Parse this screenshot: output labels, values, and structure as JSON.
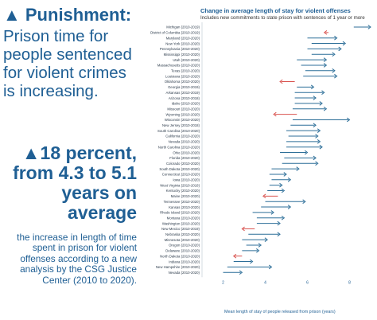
{
  "left_panel": {
    "headline": "▲ Punishment:",
    "intro": "Prison time for people sentenced for violent crimes is increasing.",
    "stat": "▲18 percent, from 4.3 to 5.1 years on average",
    "caption": "the increase in length of time spent in prison for violent offenses according to a new analysis by the CSG Justice Center (2010 to 2020)."
  },
  "colors": {
    "increase": "#2c6e98",
    "decrease": "#d9534f",
    "text": "#1f5f94"
  },
  "chart_data": {
    "type": "arrow",
    "title": "Change in average length of stay for violent offenses",
    "subtitle": "Includes new commitments to state prison with sentences of 1 year or more",
    "xlabel": "Mean length of stay of people released from prison (years)",
    "xlim": [
      1,
      9
    ],
    "xticks": [
      2,
      4,
      6,
      8
    ],
    "states": [
      {
        "label": "Michigan (2010-2019)",
        "start": 8.2,
        "end": 9.0
      },
      {
        "label": "District of Columbia (2010-2019)",
        "start": 7.0,
        "end": 6.8
      },
      {
        "label": "Maryland (2010-2020)",
        "start": 6.0,
        "end": 7.4
      },
      {
        "label": "New York (2010-2020)",
        "start": 6.2,
        "end": 7.8
      },
      {
        "label": "Pennsylvania (2010-2020)",
        "start": 6.0,
        "end": 7.6
      },
      {
        "label": "Mississippi (2010-2020)",
        "start": 6.2,
        "end": 7.3
      },
      {
        "label": "Utah (2010-2020)",
        "start": 5.5,
        "end": 6.9
      },
      {
        "label": "Massachusetts (2010-2020)",
        "start": 5.7,
        "end": 6.9
      },
      {
        "label": "Texas (2010-2020)",
        "start": 5.9,
        "end": 7.3
      },
      {
        "label": "Louisiana (2010-2020)",
        "start": 5.8,
        "end": 7.4
      },
      {
        "label": "Oklahoma (2010-2020)",
        "start": 5.4,
        "end": 4.7
      },
      {
        "label": "Georgia (2010-2019)",
        "start": 5.5,
        "end": 6.3
      },
      {
        "label": "Arkansas (2010-2019)",
        "start": 5.4,
        "end": 6.8
      },
      {
        "label": "Arizona (2010-2018)",
        "start": 5.4,
        "end": 6.4
      },
      {
        "label": "Idaho (2010-2020)",
        "start": 5.4,
        "end": 6.7
      },
      {
        "label": "Missouri (2010-2020)",
        "start": 5.3,
        "end": 6.9
      },
      {
        "label": "Wyoming (2010-2020)",
        "start": 5.5,
        "end": 4.4
      },
      {
        "label": "Wisconsin (2010-2020)",
        "start": 5.3,
        "end": 8.0
      },
      {
        "label": "New Jersey (2010-2018)",
        "start": 5.2,
        "end": 6.4
      },
      {
        "label": "South Carolina (2010-2020)",
        "start": 5.0,
        "end": 6.6
      },
      {
        "label": "California (2010-2020)",
        "start": 5.1,
        "end": 6.5
      },
      {
        "label": "Nevada (2010-2020)",
        "start": 5.0,
        "end": 6.6
      },
      {
        "label": "North Carolina (2010-2020)",
        "start": 5.0,
        "end": 6.7
      },
      {
        "label": "Ohio (2010-2020)",
        "start": 4.7,
        "end": 6.0
      },
      {
        "label": "Florida (2010-2020)",
        "start": 4.9,
        "end": 6.4
      },
      {
        "label": "Colorado (2010-2020)",
        "start": 4.8,
        "end": 6.5
      },
      {
        "label": "South Dakota (2010-2020)",
        "start": 4.3,
        "end": 5.6
      },
      {
        "label": "Connecticut (2010-2020)",
        "start": 4.2,
        "end": 5.0
      },
      {
        "label": "Iowa (2010-2020)",
        "start": 4.3,
        "end": 5.2
      },
      {
        "label": "West Virginia (2010-2018)",
        "start": 4.2,
        "end": 4.8
      },
      {
        "label": "Kentucky (2010-2020)",
        "start": 4.1,
        "end": 4.9
      },
      {
        "label": "Maine (2010-2020)",
        "start": 4.6,
        "end": 3.9
      },
      {
        "label": "Tennessee (2010-2020)",
        "start": 4.0,
        "end": 5.9
      },
      {
        "label": "Kansas (2010-2020)",
        "start": 3.8,
        "end": 5.2
      },
      {
        "label": "Rhode Island (2010-2020)",
        "start": 3.4,
        "end": 4.4
      },
      {
        "label": "Montana (2010-2020)",
        "start": 3.6,
        "end": 4.9
      },
      {
        "label": "Washington (2010-2020)",
        "start": 3.6,
        "end": 4.7
      },
      {
        "label": "New Mexico (2010-2019)",
        "start": 3.5,
        "end": 2.9
      },
      {
        "label": "Nebraska (2010-2020)",
        "start": 3.2,
        "end": 4.7
      },
      {
        "label": "Minnesota (2010-2020)",
        "start": 2.9,
        "end": 4.1
      },
      {
        "label": "Oregon (2010-2020)",
        "start": 3.1,
        "end": 3.8
      },
      {
        "label": "Delaware (2010-2020)",
        "start": 2.9,
        "end": 3.7
      },
      {
        "label": "North Dakota (2010-2020)",
        "start": 2.9,
        "end": 2.5
      },
      {
        "label": "Indiana (2010-2020)",
        "start": 2.5,
        "end": 3.4
      },
      {
        "label": "New Hampshire (2010-2020)",
        "start": 2.2,
        "end": 4.3
      },
      {
        "label": "Nevada (2010-2020)",
        "start": 2.0,
        "end": 2.9
      }
    ]
  }
}
